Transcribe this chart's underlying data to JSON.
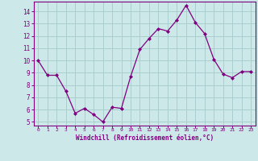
{
  "x": [
    0,
    1,
    2,
    3,
    4,
    5,
    6,
    7,
    8,
    9,
    10,
    11,
    12,
    13,
    14,
    15,
    16,
    17,
    18,
    19,
    20,
    21,
    22,
    23
  ],
  "y": [
    10.0,
    8.8,
    8.8,
    7.5,
    5.7,
    6.1,
    5.6,
    5.0,
    6.2,
    6.1,
    8.7,
    10.9,
    11.8,
    12.6,
    12.4,
    13.3,
    14.5,
    13.1,
    12.2,
    10.1,
    8.9,
    8.6,
    9.1,
    9.1
  ],
  "line_color": "#800080",
  "marker": "D",
  "marker_size": 2.0,
  "bg_color": "#cce8e8",
  "grid_color": "#aacece",
  "xlabel": "Windchill (Refroidissement éolien,°C)",
  "xlabel_color": "#800080",
  "tick_color": "#800080",
  "ylim": [
    4.7,
    14.8
  ],
  "xlim": [
    -0.5,
    23.5
  ],
  "yticks": [
    5,
    6,
    7,
    8,
    9,
    10,
    11,
    12,
    13,
    14
  ],
  "xticks": [
    0,
    1,
    2,
    3,
    4,
    5,
    6,
    7,
    8,
    9,
    10,
    11,
    12,
    13,
    14,
    15,
    16,
    17,
    18,
    19,
    20,
    21,
    22,
    23
  ],
  "spine_color": "#800080",
  "separator_color": "#800080"
}
